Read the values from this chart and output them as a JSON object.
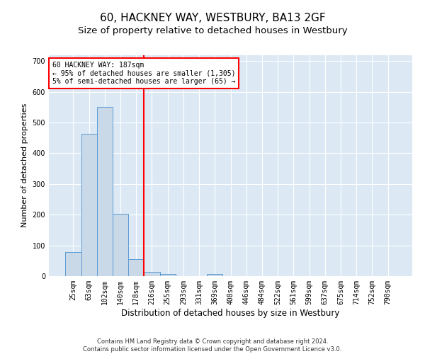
{
  "title": "60, HACKNEY WAY, WESTBURY, BA13 2GF",
  "subtitle": "Size of property relative to detached houses in Westbury",
  "xlabel": "Distribution of detached houses by size in Westbury",
  "ylabel": "Number of detached properties",
  "categories": [
    "25sqm",
    "63sqm",
    "102sqm",
    "140sqm",
    "178sqm",
    "216sqm",
    "255sqm",
    "293sqm",
    "331sqm",
    "369sqm",
    "408sqm",
    "446sqm",
    "484sqm",
    "522sqm",
    "561sqm",
    "599sqm",
    "637sqm",
    "675sqm",
    "714sqm",
    "752sqm",
    "790sqm"
  ],
  "values": [
    78,
    462,
    550,
    203,
    56,
    14,
    7,
    0,
    0,
    8,
    0,
    0,
    0,
    0,
    0,
    0,
    0,
    0,
    0,
    0,
    0
  ],
  "bar_color": "#c9d9e8",
  "bar_edge_color": "#5b9bd5",
  "red_line_x": 4.5,
  "annotation_text": "60 HACKNEY WAY: 187sqm\n← 95% of detached houses are smaller (1,305)\n5% of semi-detached houses are larger (65) →",
  "annotation_box_color": "white",
  "annotation_box_edge_color": "red",
  "red_line_color": "red",
  "ylim": [
    0,
    720
  ],
  "yticks": [
    0,
    100,
    200,
    300,
    400,
    500,
    600,
    700
  ],
  "footer": "Contains HM Land Registry data © Crown copyright and database right 2024.\nContains public sector information licensed under the Open Government Licence v3.0.",
  "background_color": "#dce9f5",
  "grid_color": "white",
  "title_fontsize": 11,
  "subtitle_fontsize": 9.5,
  "xlabel_fontsize": 8.5,
  "ylabel_fontsize": 8,
  "tick_fontsize": 7,
  "annotation_fontsize": 7,
  "footer_fontsize": 6
}
